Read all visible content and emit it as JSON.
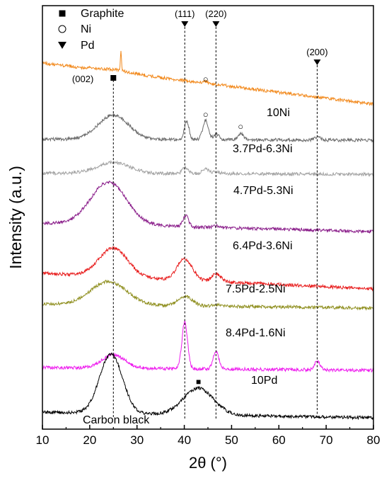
{
  "chart_data": {
    "type": "line",
    "xlabel": "2θ (°)",
    "ylabel": "Intensity (a.u.)",
    "xlim": [
      10,
      80
    ],
    "xticks": [
      10,
      20,
      30,
      40,
      50,
      60,
      70,
      80
    ],
    "y_ticks_shown": false,
    "grid": false,
    "legend": {
      "position": "top-left",
      "entries": [
        {
          "marker": "square-filled",
          "label": "Graphite"
        },
        {
          "marker": "circle-open",
          "label": "Ni"
        },
        {
          "marker": "triangle-down-filled",
          "label": "Pd"
        }
      ]
    },
    "reference_lines": [
      {
        "x": 25,
        "label": ""
      },
      {
        "x": 40.1,
        "label": "(111)"
      },
      {
        "x": 46.7,
        "label": "(220)"
      },
      {
        "x": 68.1,
        "label": "(200)"
      }
    ],
    "annotations": [
      {
        "text": "(002)",
        "x": 25
      },
      {
        "text": "■",
        "x": 43,
        "series": "Carbon black"
      },
      {
        "text": "○",
        "x": 44.5,
        "series": "10Ni"
      },
      {
        "text": "○",
        "x": 44.5,
        "series": "3.7Pd-6.3Ni"
      },
      {
        "text": "○",
        "x": 51.9,
        "series": "3.7Pd-6.3Ni"
      }
    ],
    "series": [
      {
        "name": "10Ni",
        "color": "#f28a1e",
        "baseline": 0.97,
        "peaks": [
          [
            25,
            0.05,
            3.5
          ],
          [
            26.6,
            0.46,
            0.12
          ],
          [
            44.5,
            0.03,
            0.6
          ]
        ]
      },
      {
        "name": "3.7Pd-6.3Ni",
        "color": "#6b6b6b",
        "baseline": 0.01,
        "peaks": [
          [
            25,
            0.23,
            3.2
          ],
          [
            40.5,
            0.17,
            0.5
          ],
          [
            44.5,
            0.18,
            0.6
          ],
          [
            46.8,
            0.05,
            0.6
          ],
          [
            51.9,
            0.06,
            0.6
          ],
          [
            68.2,
            0.03,
            0.7
          ]
        ]
      },
      {
        "name": "4.7Pd-5.3Ni",
        "color": "#a3a3a3",
        "baseline": 0.01,
        "peaks": [
          [
            25,
            0.11,
            3.5
          ],
          [
            40.2,
            0.06,
            0.6
          ],
          [
            44.5,
            0.05,
            0.7
          ],
          [
            46.8,
            0.02,
            0.7
          ]
        ]
      },
      {
        "name": "6.4Pd-3.6Ni",
        "color": "#8b1f8b",
        "baseline": 0.1,
        "peaks": [
          [
            24,
            0.5,
            3.8
          ],
          [
            40.3,
            0.13,
            0.6
          ],
          [
            46.8,
            0.02,
            0.7
          ]
        ]
      },
      {
        "name": "7.5Pd-2.5Ni",
        "color": "#e81d1d",
        "baseline": 0.2,
        "peaks": [
          [
            25,
            0.37,
            3.0
          ],
          [
            40.1,
            0.27,
            1.6
          ],
          [
            46.8,
            0.1,
            0.9
          ]
        ]
      },
      {
        "name": "8.4Pd-1.6Ni",
        "color": "#8f8f1f",
        "baseline": 0.05,
        "peaks": [
          [
            24,
            0.3,
            3.8
          ],
          [
            40.2,
            0.12,
            1.5
          ],
          [
            46.8,
            0.02,
            0.9
          ]
        ]
      },
      {
        "name": "10Pd",
        "color": "#ee1cee",
        "baseline": 0.05,
        "peaks": [
          [
            25,
            0.23,
            2.5
          ],
          [
            40.1,
            0.82,
            0.6
          ],
          [
            46.7,
            0.32,
            0.6
          ],
          [
            68.1,
            0.16,
            0.6
          ]
        ]
      },
      {
        "name": "Carbon black",
        "color": "#000000",
        "baseline": 0.1,
        "peaks": [
          [
            24.5,
            1.05,
            2.4
          ],
          [
            43,
            0.47,
            3.2
          ]
        ]
      }
    ]
  }
}
